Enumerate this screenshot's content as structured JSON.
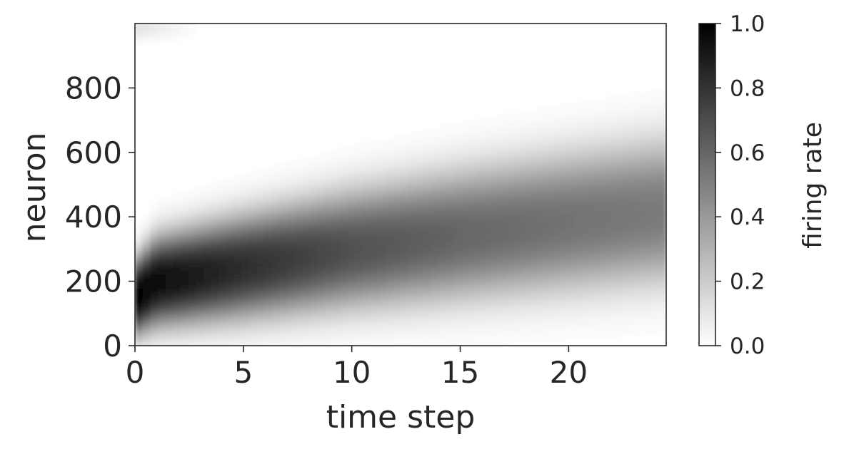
{
  "chart_data": {
    "type": "heatmap",
    "title": "",
    "xlabel": "time step",
    "ylabel": "neuron",
    "xlim": [
      0,
      24.5
    ],
    "ylim": [
      0,
      1000
    ],
    "x_ticks": [
      0,
      5,
      10,
      15,
      20
    ],
    "y_ticks": [
      0,
      200,
      400,
      600,
      800
    ],
    "colormap": "Greys",
    "grid": false,
    "colorbar": {
      "label": "firing rate",
      "range": [
        0.0,
        1.0
      ],
      "ticks": [
        "0.0",
        "0.2",
        "0.4",
        "0.6",
        "0.8",
        "1.0"
      ],
      "colors": {
        "low": "#ffffff",
        "high": "#000000"
      }
    },
    "band": {
      "description_points": [
        {
          "time_step": 0,
          "center_neuron": 150,
          "half_width": 140,
          "peak_rate": 1.0
        },
        {
          "time_step": 1,
          "center_neuron": 200,
          "half_width": 165,
          "peak_rate": 0.95
        },
        {
          "time_step": 5,
          "center_neuron": 245,
          "half_width": 190,
          "peak_rate": 0.82
        },
        {
          "time_step": 10,
          "center_neuron": 300,
          "half_width": 215,
          "peak_rate": 0.68
        },
        {
          "time_step": 15,
          "center_neuron": 345,
          "half_width": 235,
          "peak_rate": 0.6
        },
        {
          "time_step": 20,
          "center_neuron": 385,
          "half_width": 250,
          "peak_rate": 0.55
        },
        {
          "time_step": 24.5,
          "center_neuron": 420,
          "half_width": 260,
          "peak_rate": 0.52
        }
      ],
      "wrap_edge": {
        "neuron": 990,
        "time_step": [
          0,
          3
        ],
        "peak_rate": 0.12
      }
    }
  }
}
